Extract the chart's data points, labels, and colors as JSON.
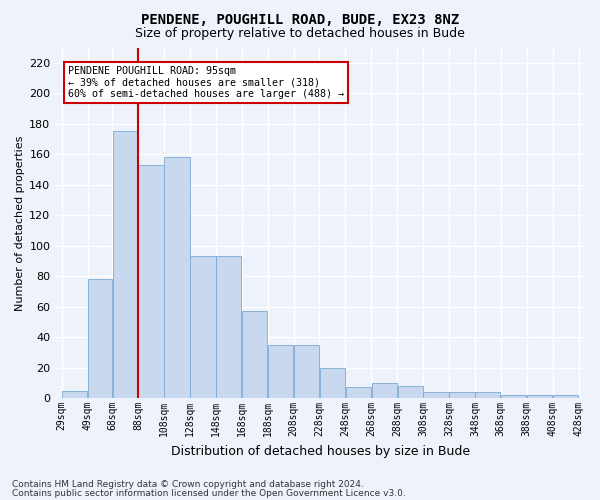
{
  "title1": "PENDENE, POUGHILL ROAD, BUDE, EX23 8NZ",
  "title2": "Size of property relative to detached houses in Bude",
  "xlabel": "Distribution of detached houses by size in Bude",
  "ylabel": "Number of detached properties",
  "footnote1": "Contains HM Land Registry data © Crown copyright and database right 2024.",
  "footnote2": "Contains public sector information licensed under the Open Government Licence v3.0.",
  "annotation_line1": "PENDENE POUGHILL ROAD: 95sqm",
  "annotation_line2": "← 39% of detached houses are smaller (318)",
  "annotation_line3": "60% of semi-detached houses are larger (488) →",
  "bar_color": "#c8d9ef",
  "bar_edge_color": "#7aaad4",
  "vline_color": "#cc0000",
  "vline_x_bin": 3,
  "bin_edges": [
    29,
    49,
    68,
    88,
    108,
    128,
    148,
    168,
    188,
    208,
    228,
    248,
    268,
    288,
    308,
    328,
    348,
    368,
    388,
    408,
    428
  ],
  "bar_values": [
    5,
    78,
    175,
    153,
    158,
    93,
    93,
    57,
    35,
    35,
    20,
    7,
    10,
    8,
    4,
    4,
    4,
    2,
    2,
    2
  ],
  "ylim": [
    0,
    230
  ],
  "yticks": [
    0,
    20,
    40,
    60,
    80,
    100,
    120,
    140,
    160,
    180,
    200,
    220
  ],
  "background_color": "#eef2fa",
  "grid_color": "#ffffff",
  "annotation_box_facecolor": "#ffffff",
  "annotation_box_edgecolor": "#cc0000",
  "tick_label_fontsize": 7,
  "ylabel_fontsize": 8,
  "xlabel_fontsize": 9,
  "title1_fontsize": 10,
  "title2_fontsize": 9
}
